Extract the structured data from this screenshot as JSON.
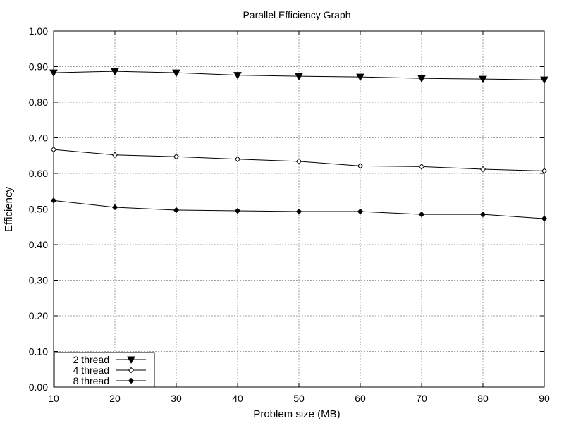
{
  "chart_data": {
    "type": "line",
    "title": "Parallel Efficiency Graph",
    "xlabel": "Problem size (MB)",
    "ylabel": "Efficiency",
    "x": [
      10,
      20,
      30,
      40,
      50,
      60,
      70,
      80,
      90
    ],
    "xlim": [
      10,
      90
    ],
    "ylim": [
      0,
      1
    ],
    "x_ticks": [
      "10",
      "20",
      "30",
      "40",
      "50",
      "60",
      "70",
      "80",
      "90"
    ],
    "y_ticks": [
      "0.00",
      "0.10",
      "0.20",
      "0.30",
      "0.40",
      "0.50",
      "0.60",
      "0.70",
      "0.80",
      "0.90",
      "1.00"
    ],
    "grid": true,
    "legend_position": "bottom-left",
    "series": [
      {
        "name": "2 thread",
        "marker": "triangle-down",
        "values": [
          0.883,
          0.887,
          0.883,
          0.876,
          0.873,
          0.871,
          0.867,
          0.865,
          0.863
        ]
      },
      {
        "name": "4 thread",
        "marker": "diamond-open",
        "values": [
          0.667,
          0.652,
          0.647,
          0.64,
          0.634,
          0.621,
          0.619,
          0.612,
          0.607
        ]
      },
      {
        "name": "8 thread",
        "marker": "diamond-filled",
        "values": [
          0.524,
          0.505,
          0.497,
          0.495,
          0.493,
          0.493,
          0.485,
          0.485,
          0.473
        ]
      }
    ]
  }
}
